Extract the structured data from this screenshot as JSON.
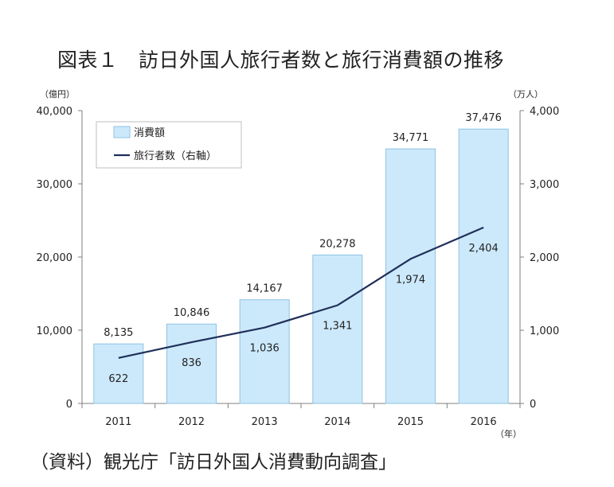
{
  "title": "図表１　訪日外国人旅行者数と旅行消費額の推移",
  "source": "（資料）観光庁「訪日外国人消費動向調査」",
  "colors": {
    "bar_fill": "#cce9fb",
    "bar_stroke": "#8fc3e3",
    "line": "#1f2f5a",
    "axis": "#7f7f7f"
  },
  "chart_data": {
    "type": "bar",
    "categories": [
      "2011",
      "2012",
      "2013",
      "2014",
      "2015",
      "2016"
    ],
    "series": [
      {
        "name": "消費額",
        "type": "bar",
        "axis": "left",
        "values": [
          8135,
          10846,
          14167,
          20278,
          34771,
          37476
        ],
        "labels": [
          "8,135",
          "10,846",
          "14,167",
          "20,278",
          "34,771",
          "37,476"
        ]
      },
      {
        "name": "旅行者数（右軸）",
        "type": "line",
        "axis": "right",
        "values": [
          622,
          836,
          1036,
          1341,
          1974,
          2404
        ],
        "labels": [
          "622",
          "836",
          "1,036",
          "1,341",
          "1,974",
          "2,404"
        ]
      }
    ],
    "y_left": {
      "unit": "（億円）",
      "ylim": [
        0,
        40000
      ],
      "ticks": [
        "0",
        "10,000",
        "20,000",
        "30,000",
        "40,000"
      ]
    },
    "y_right": {
      "unit": "（万人）",
      "ylim": [
        0,
        4000
      ],
      "ticks": [
        "0",
        "1,000",
        "2,000",
        "3,000",
        "4,000"
      ]
    },
    "x_unit": "（年）",
    "legend": {
      "placement": "top-left",
      "bar_label": "消費額",
      "line_label": "旅行者数（右軸）"
    },
    "grid": false
  }
}
